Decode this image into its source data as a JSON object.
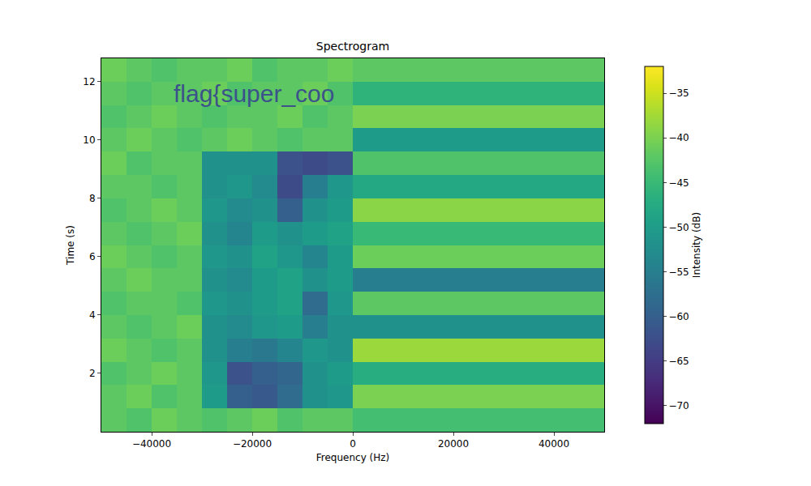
{
  "chart_data": {
    "type": "heatmap",
    "title": "Spectrogram",
    "x_label": "Frequency (Hz)",
    "y_label": "Time (s)",
    "x": [
      -47500,
      -42500,
      -37500,
      -32500,
      -27500,
      -22500,
      -17500,
      -12500,
      -7500,
      -2500,
      2500,
      7500,
      12500,
      17500,
      22500,
      27500,
      32500,
      37500,
      42500,
      47500
    ],
    "y": [
      0.4,
      1.2,
      2.0,
      2.8,
      3.6,
      4.4,
      5.2,
      6.0,
      6.8,
      7.6,
      8.4,
      9.2,
      10.0,
      10.8,
      11.6,
      12.4
    ],
    "z": [
      [
        -42,
        -43,
        -41,
        -42,
        -43,
        -42,
        -41,
        -43,
        -42,
        -42,
        -44,
        -44,
        -44,
        -44,
        -44,
        -44,
        -44,
        -44,
        -44,
        -44
      ],
      [
        -42,
        -41,
        -43,
        -42,
        -50,
        -60,
        -61,
        -58,
        -52,
        -51,
        -40,
        -40,
        -40,
        -40,
        -40,
        -40,
        -40,
        -40,
        -40,
        -40
      ],
      [
        -43,
        -42,
        -41,
        -42,
        -51,
        -62,
        -60,
        -59,
        -52,
        -50,
        -47,
        -47,
        -47,
        -47,
        -47,
        -47,
        -47,
        -47,
        -47,
        -47
      ],
      [
        -41,
        -42,
        -43,
        -42,
        -52,
        -55,
        -56,
        -54,
        -51,
        -52,
        -38,
        -38,
        -38,
        -38,
        -38,
        -38,
        -38,
        -38,
        -38,
        -38
      ],
      [
        -42,
        -43,
        -42,
        -41,
        -52,
        -53,
        -51,
        -50,
        -55,
        -52,
        -52,
        -52,
        -52,
        -52,
        -52,
        -52,
        -52,
        -52,
        -52,
        -52
      ],
      [
        -43,
        -42,
        -42,
        -43,
        -51,
        -52,
        -50,
        -49,
        -58,
        -51,
        -42,
        -42,
        -42,
        -42,
        -42,
        -42,
        -42,
        -42,
        -42,
        -42
      ],
      [
        -42,
        -41,
        -42,
        -42,
        -52,
        -53,
        -50,
        -49,
        -52,
        -50,
        -55,
        -55,
        -55,
        -55,
        -55,
        -55,
        -55,
        -55,
        -55,
        -55
      ],
      [
        -41,
        -42,
        -43,
        -42,
        -51,
        -52,
        -49,
        -51,
        -54,
        -50,
        -41,
        -41,
        -41,
        -41,
        -41,
        -41,
        -41,
        -41,
        -41,
        -41
      ],
      [
        -42,
        -43,
        -42,
        -41,
        -52,
        -54,
        -50,
        -52,
        -50,
        -49,
        -45,
        -45,
        -45,
        -45,
        -45,
        -45,
        -45,
        -45,
        -45,
        -45
      ],
      [
        -43,
        -42,
        -41,
        -42,
        -51,
        -53,
        -52,
        -60,
        -52,
        -50,
        -39,
        -39,
        -39,
        -39,
        -39,
        -39,
        -39,
        -39,
        -39,
        -39
      ],
      [
        -42,
        -42,
        -43,
        -42,
        -52,
        -51,
        -53,
        -63,
        -55,
        -51,
        -48,
        -48,
        -48,
        -48,
        -48,
        -48,
        -48,
        -48,
        -48,
        -48
      ],
      [
        -41,
        -43,
        -42,
        -42,
        -52,
        -52,
        -52,
        -62,
        -63,
        -62,
        -43,
        -43,
        -43,
        -43,
        -43,
        -43,
        -43,
        -43,
        -43,
        -43
      ],
      [
        -42,
        -41,
        -42,
        -43,
        -42,
        -41,
        -42,
        -43,
        -42,
        -42,
        -50,
        -50,
        -50,
        -50,
        -50,
        -50,
        -50,
        -50,
        -50,
        -50
      ],
      [
        -43,
        -42,
        -41,
        -42,
        -43,
        -42,
        -42,
        -41,
        -43,
        -42,
        -40,
        -40,
        -40,
        -40,
        -40,
        -40,
        -40,
        -40,
        -40,
        -40
      ],
      [
        -42,
        -43,
        -42,
        -42,
        -41,
        -43,
        -42,
        -42,
        -41,
        -43,
        -46,
        -46,
        -46,
        -46,
        -46,
        -46,
        -46,
        -46,
        -46,
        -46
      ],
      [
        -41,
        -42,
        -43,
        -42,
        -42,
        -41,
        -43,
        -42,
        -42,
        -41,
        -42,
        -42,
        -42,
        -42,
        -42,
        -42,
        -42,
        -42,
        -42,
        -42
      ]
    ],
    "xlim": [
      -50000,
      50000
    ],
    "ylim": [
      0,
      12.8
    ],
    "xticks": [
      {
        "value": -40000,
        "label": "−40000"
      },
      {
        "value": -20000,
        "label": "−20000"
      },
      0,
      20000,
      40000
    ],
    "yticks": [
      2,
      4,
      6,
      8,
      10,
      12
    ],
    "zlim": [
      -72,
      -32
    ],
    "zticks": [
      {
        "value": -70,
        "label": "−70"
      },
      {
        "value": -65,
        "label": "−65"
      },
      {
        "value": -60,
        "label": "−60"
      },
      {
        "value": -55,
        "label": "−55"
      },
      {
        "value": -50,
        "label": "−50"
      },
      {
        "value": -45,
        "label": "−45"
      },
      {
        "value": -40,
        "label": "−40"
      },
      {
        "value": -35,
        "label": "−35"
      }
    ],
    "colorbar_label": "Intensity (dB)",
    "annotations": [
      {
        "text": "flag{super_coo",
        "x": -36000,
        "y": 11.6
      }
    ],
    "grid": false
  }
}
